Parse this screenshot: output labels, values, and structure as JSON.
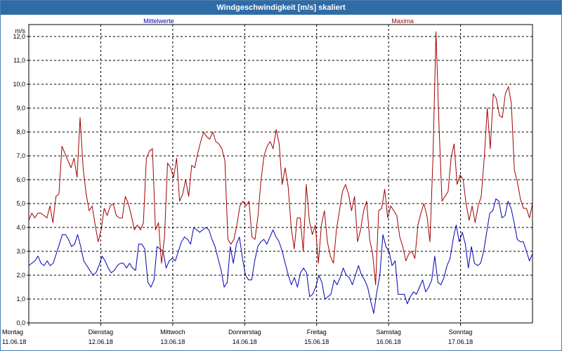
{
  "window": {
    "title": "Windgeschwindigkeit [m/s] skaliert"
  },
  "colors": {
    "title_bar": "#2f6ca6",
    "series_mean": "#0000b4",
    "series_max": "#a00000",
    "grid": "#000000",
    "plot_bg": "#ffffff"
  },
  "chart_data": {
    "type": "line",
    "title": "Windgeschwindigkeit [m/s] skaliert",
    "ylabel": "m/s",
    "xlabel": "",
    "ylim": [
      0,
      12.5
    ],
    "yticks": [
      "0,0",
      "1,0",
      "2,0",
      "3,0",
      "4,0",
      "5,0",
      "6,0",
      "7,0",
      "8,0",
      "9,0",
      "10,0",
      "11,0",
      "12,0"
    ],
    "x_days": 7,
    "x_labels": [
      {
        "day": "Montag",
        "date": "11.06.18"
      },
      {
        "day": "Dienstag",
        "date": "12.06.18"
      },
      {
        "day": "Mittwoch",
        "date": "13.06.18"
      },
      {
        "day": "Donnerstag",
        "date": "14.06.18"
      },
      {
        "day": "Freitag",
        "date": "15.06.18"
      },
      {
        "day": "Samstag",
        "date": "16.06.18"
      },
      {
        "day": "Sonntag",
        "date": "17.06.18"
      }
    ],
    "grid": true,
    "legend": "top",
    "series": [
      {
        "name": "Mittelwerte",
        "color": "#0000b4",
        "values": [
          2.4,
          2.5,
          2.6,
          2.8,
          2.5,
          2.4,
          2.6,
          2.4,
          2.5,
          2.9,
          3.3,
          3.7,
          3.7,
          3.5,
          3.2,
          3.3,
          3.7,
          3.2,
          2.6,
          2.4,
          2.2,
          2.0,
          2.1,
          2.4,
          2.8,
          2.6,
          2.3,
          2.1,
          2.2,
          2.4,
          2.5,
          2.5,
          2.3,
          2.5,
          2.3,
          2.2,
          3.3,
          3.3,
          3.1,
          1.7,
          1.5,
          1.8,
          3.2,
          3.1,
          3.0,
          2.3,
          2.6,
          2.7,
          2.6,
          3.0,
          3.4,
          3.6,
          3.5,
          3.3,
          4.0,
          3.9,
          3.8,
          3.9,
          4.0,
          3.9,
          3.5,
          3.2,
          2.7,
          2.2,
          1.5,
          1.7,
          3.2,
          2.5,
          3.3,
          3.6,
          2.7,
          2.0,
          1.8,
          1.8,
          2.6,
          3.2,
          3.4,
          3.5,
          3.3,
          3.6,
          3.9,
          3.6,
          3.4,
          3.0,
          2.5,
          2.0,
          1.6,
          1.9,
          1.5,
          2.1,
          2.3,
          2.1,
          1.1,
          1.2,
          1.5,
          2.0,
          1.7,
          1.0,
          1.1,
          1.2,
          1.8,
          1.6,
          1.9,
          2.3,
          2.0,
          1.9,
          1.6,
          2.0,
          2.4,
          2.0,
          1.8,
          1.5,
          0.9,
          0.4,
          1.3,
          2.0,
          3.7,
          3.2,
          3.0,
          2.4,
          2.6,
          1.2,
          1.2,
          1.2,
          0.8,
          1.1,
          1.3,
          1.2,
          1.5,
          1.8,
          1.3,
          1.5,
          1.8,
          2.8,
          1.7,
          1.6,
          1.9,
          2.4,
          2.7,
          3.5,
          4.1,
          3.4,
          3.8,
          3.3,
          2.3,
          3.2,
          2.5,
          2.4,
          2.5,
          3.0,
          3.8,
          4.6,
          4.7,
          5.2,
          5.1,
          4.4,
          4.5,
          5.1,
          4.8,
          4.2,
          3.5,
          3.4,
          3.4,
          3.0,
          2.6,
          2.9
        ]
      },
      {
        "name": "Maxima",
        "color": "#a00000",
        "values": [
          4.3,
          4.6,
          4.4,
          4.6,
          4.6,
          4.5,
          4.4,
          4.9,
          4.2,
          5.3,
          5.4,
          7.4,
          7.1,
          6.8,
          6.5,
          6.9,
          6.1,
          8.6,
          6.5,
          5.4,
          4.7,
          4.9,
          4.1,
          3.4,
          3.9,
          4.8,
          4.5,
          4.9,
          5.0,
          4.5,
          4.4,
          4.4,
          5.3,
          5.0,
          4.5,
          3.9,
          4.1,
          3.9,
          4.2,
          6.9,
          7.2,
          7.3,
          3.9,
          4.2,
          2.5,
          3.6,
          6.7,
          6.5,
          6.1,
          6.9,
          5.1,
          5.4,
          6.0,
          5.3,
          6.6,
          6.5,
          7.1,
          7.6,
          8.0,
          7.8,
          7.7,
          8.0,
          7.6,
          7.5,
          7.3,
          6.8,
          3.5,
          3.3,
          3.5,
          4.1,
          4.9,
          5.1,
          4.9,
          5.1,
          3.6,
          3.5,
          4.5,
          6.0,
          7.0,
          7.4,
          7.6,
          7.3,
          8.1,
          7.5,
          5.8,
          6.5,
          5.7,
          4.0,
          3.1,
          4.4,
          4.4,
          3.0,
          5.8,
          4.3,
          3.7,
          4.1,
          2.5,
          4.1,
          4.7,
          3.4,
          2.8,
          2.5,
          3.9,
          4.7,
          5.5,
          5.8,
          5.4,
          4.7,
          5.3,
          3.4,
          3.9,
          4.7,
          5.1,
          3.5,
          2.9,
          1.6,
          4.7,
          4.8,
          5.6,
          4.4,
          4.9,
          4.7,
          4.5,
          3.6,
          3.2,
          2.6,
          2.9,
          3.0,
          2.7,
          4.1,
          4.6,
          5.0,
          4.5,
          3.4,
          6.9,
          12.2,
          8.3,
          5.1,
          5.3,
          5.5,
          6.9,
          7.5,
          5.8,
          6.2,
          6.0,
          5.0,
          4.3,
          4.9,
          4.2,
          4.9,
          5.3,
          6.9,
          9.0,
          7.3,
          9.6,
          9.4,
          8.7,
          8.6,
          9.6,
          9.9,
          9.2,
          6.4,
          5.9,
          5.2,
          4.8,
          4.8,
          4.4,
          5.0
        ]
      }
    ]
  }
}
